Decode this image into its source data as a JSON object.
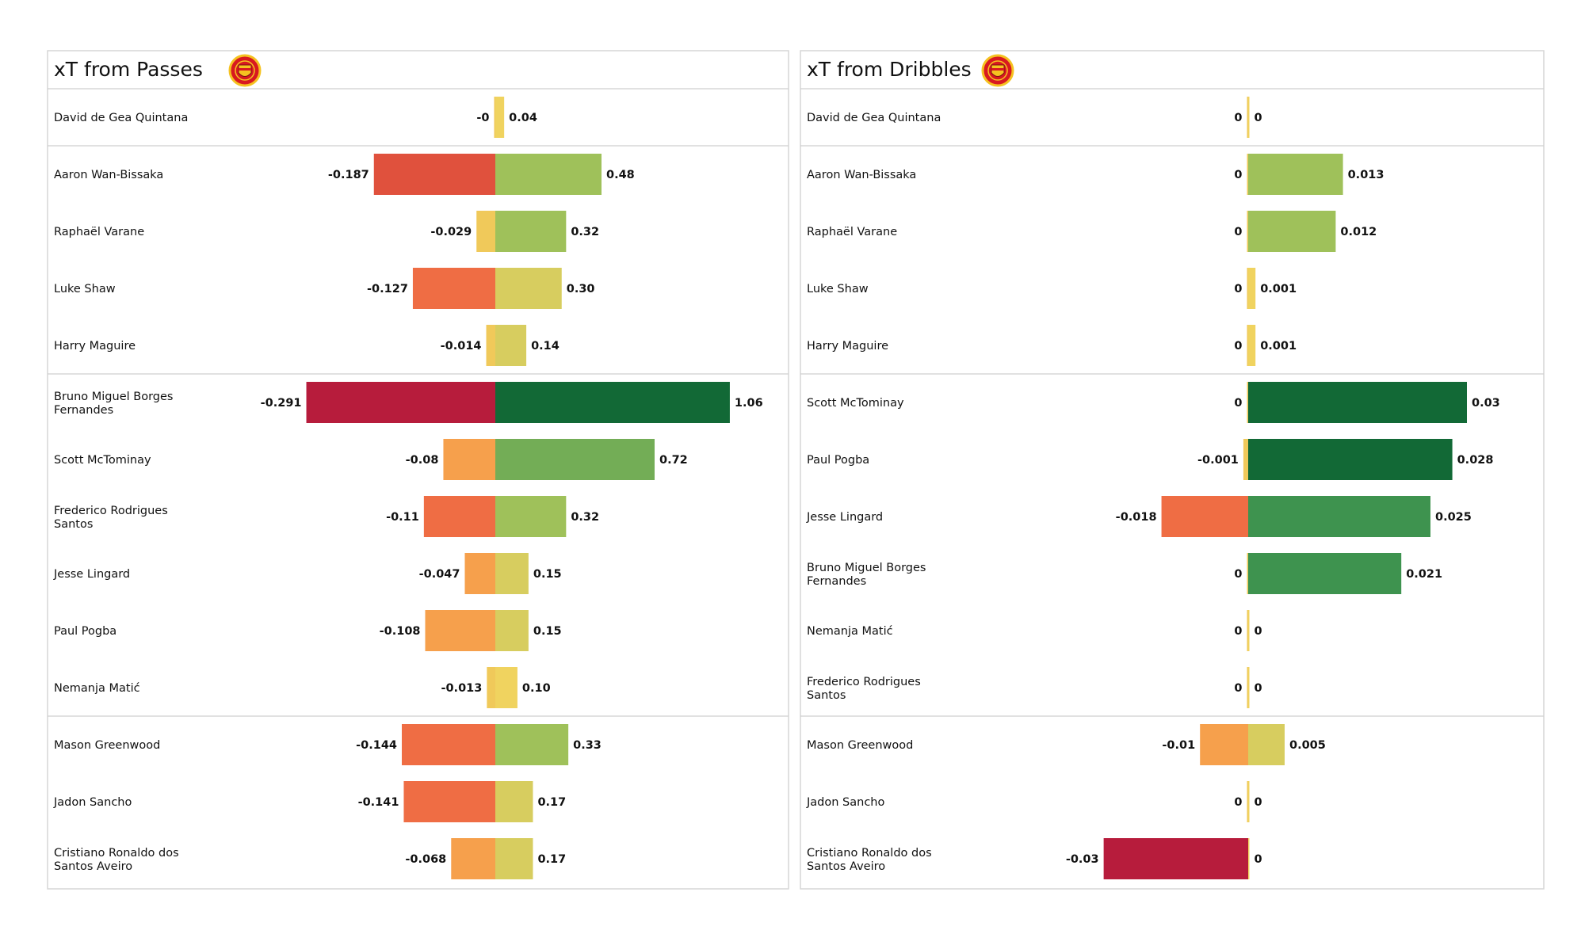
{
  "chart_data": [
    {
      "type": "bar",
      "title": "xT from Passes",
      "logo": "manchester-united-crest",
      "xlim": [
        -0.36,
        1.2
      ],
      "negative_value_labels": [
        "-0",
        "-0.187",
        "-0.029",
        "-0.127",
        "-0.014",
        "-0.291",
        "-0.08",
        "-0.11",
        "-0.047",
        "-0.108",
        "-0.013",
        "-0.144",
        "-0.141",
        "-0.068"
      ],
      "positive_value_labels": [
        "0.04",
        "0.48",
        "0.32",
        "0.30",
        "0.14",
        "1.06",
        "0.72",
        "0.32",
        "0.15",
        "0.15",
        "0.10",
        "0.33",
        "0.17",
        "0.17"
      ],
      "groups": [
        {
          "rows": [
            {
              "name": [
                "David de Gea Quintana"
              ],
              "neg": 0,
              "pos": 0.04
            }
          ]
        },
        {
          "rows": [
            {
              "name": [
                "Aaron Wan-Bissaka"
              ],
              "neg": -0.187,
              "pos": 0.48
            },
            {
              "name": [
                "Raphaël Varane"
              ],
              "neg": -0.029,
              "pos": 0.32
            },
            {
              "name": [
                "Luke Shaw"
              ],
              "neg": -0.127,
              "pos": 0.3
            },
            {
              "name": [
                "Harry  Maguire"
              ],
              "neg": -0.014,
              "pos": 0.14
            }
          ]
        },
        {
          "rows": [
            {
              "name": [
                "Bruno Miguel Borges",
                "Fernandes"
              ],
              "neg": -0.291,
              "pos": 1.06
            },
            {
              "name": [
                "Scott McTominay"
              ],
              "neg": -0.08,
              "pos": 0.72
            },
            {
              "name": [
                "Frederico Rodrigues",
                "Santos"
              ],
              "neg": -0.11,
              "pos": 0.32
            },
            {
              "name": [
                "Jesse Lingard"
              ],
              "neg": -0.047,
              "pos": 0.15
            },
            {
              "name": [
                "Paul Pogba"
              ],
              "neg": -0.108,
              "pos": 0.15
            },
            {
              "name": [
                "Nemanja Matić"
              ],
              "neg": -0.013,
              "pos": 0.1
            }
          ]
        },
        {
          "rows": [
            {
              "name": [
                "Mason Greenwood"
              ],
              "neg": -0.144,
              "pos": 0.33
            },
            {
              "name": [
                "Jadon Sancho"
              ],
              "neg": -0.141,
              "pos": 0.17
            },
            {
              "name": [
                "Cristiano Ronaldo dos",
                "Santos Aveiro"
              ],
              "neg": -0.068,
              "pos": 0.17
            }
          ]
        }
      ]
    },
    {
      "type": "bar",
      "title": "xT from Dribbles",
      "logo": "manchester-united-crest",
      "xlim": [
        -0.0505,
        0.0375
      ],
      "negative_value_labels": [
        "0",
        "0",
        "0",
        "0",
        "0",
        "0",
        "-0.001",
        "-0.018",
        "0",
        "0",
        "0",
        "-0.01",
        "0",
        "-0.03"
      ],
      "positive_value_labels": [
        "0",
        "0.013",
        "0.012",
        "0.001",
        "0.001",
        "0.03",
        "0.028",
        "0.025",
        "0.021",
        "0",
        "0",
        "0.005",
        "0",
        "0"
      ],
      "groups": [
        {
          "rows": [
            {
              "name": [
                "David de Gea Quintana"
              ],
              "neg": 0,
              "pos": 0
            }
          ]
        },
        {
          "rows": [
            {
              "name": [
                "Aaron Wan-Bissaka"
              ],
              "neg": 0,
              "pos": 0.013
            },
            {
              "name": [
                "Raphaël Varane"
              ],
              "neg": 0,
              "pos": 0.012
            },
            {
              "name": [
                "Luke Shaw"
              ],
              "neg": 0,
              "pos": 0.001
            },
            {
              "name": [
                "Harry  Maguire"
              ],
              "neg": 0,
              "pos": 0.001
            }
          ]
        },
        {
          "rows": [
            {
              "name": [
                "Scott McTominay"
              ],
              "neg": 0,
              "pos": 0.03
            },
            {
              "name": [
                "Paul Pogba"
              ],
              "neg": -0.001,
              "pos": 0.028
            },
            {
              "name": [
                "Jesse Lingard"
              ],
              "neg": -0.018,
              "pos": 0.025
            },
            {
              "name": [
                "Bruno Miguel Borges",
                "Fernandes"
              ],
              "neg": 0,
              "pos": 0.021
            },
            {
              "name": [
                "Nemanja Matić"
              ],
              "neg": 0,
              "pos": 0
            },
            {
              "name": [
                "Frederico Rodrigues",
                "Santos"
              ],
              "neg": 0,
              "pos": 0
            }
          ]
        },
        {
          "rows": [
            {
              "name": [
                "Mason Greenwood"
              ],
              "neg": -0.01,
              "pos": 0.005
            },
            {
              "name": [
                "Jadon Sancho"
              ],
              "neg": 0,
              "pos": 0
            },
            {
              "name": [
                "Cristiano Ronaldo dos",
                "Santos Aveiro"
              ],
              "neg": -0.03,
              "pos": 0
            }
          ]
        }
      ]
    }
  ],
  "colors": {
    "neg_scale": [
      "#f0c95a",
      "#f6a04c",
      "#ef6d44",
      "#e0513d",
      "#b71c3c"
    ],
    "pos_scale": [
      "#f0d35f",
      "#d7cd5f",
      "#9fc15a",
      "#73ad56",
      "#3e934f",
      "#126936"
    ],
    "panel_border": "#d6d6d6",
    "separator": "#cfcfcf",
    "logo_red": "#d81920",
    "logo_gold": "#f5c220"
  }
}
